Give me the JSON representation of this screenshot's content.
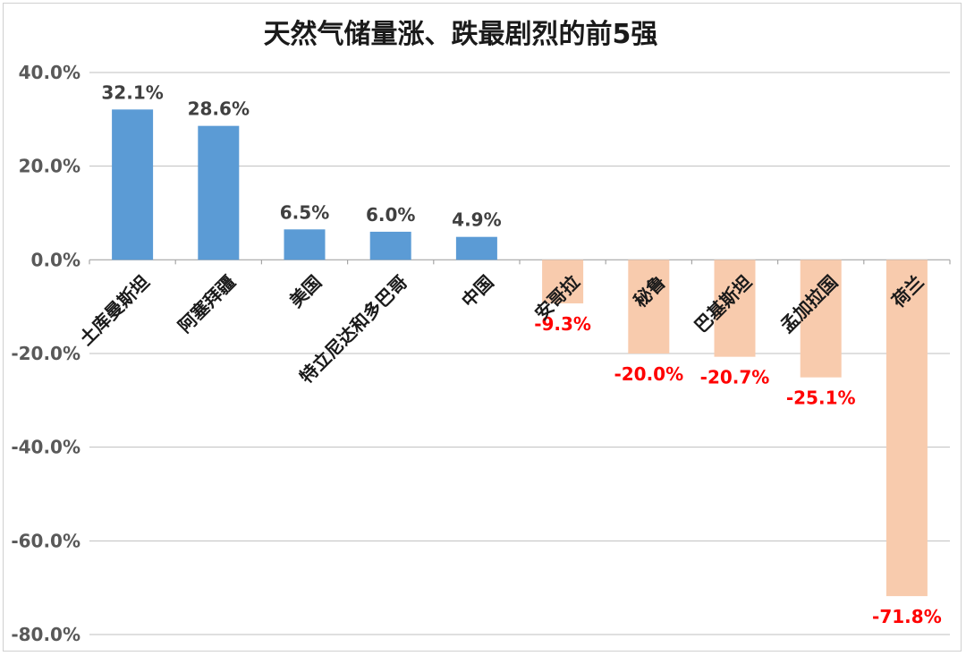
{
  "chart_data": {
    "type": "bar",
    "title": "天然气储量涨、跌最剧烈的前5强",
    "xlabel": "",
    "ylabel": "",
    "ylim": [
      -80,
      40
    ],
    "yticks": [
      40,
      20,
      0,
      -20,
      -40,
      -60,
      -80
    ],
    "ytick_labels": [
      "40.0%",
      "20.0%",
      "0.0%",
      "-20.0%",
      "-40.0%",
      "-60.0%",
      "-80.0%"
    ],
    "grid": true,
    "categories": [
      "土库曼斯坦",
      "阿塞拜疆",
      "美国",
      "特立尼达和多巴哥",
      "中国",
      "安哥拉",
      "秘鲁",
      "巴基斯坦",
      "孟加拉国",
      "荷兰"
    ],
    "values": [
      32.1,
      28.6,
      6.5,
      6.0,
      4.9,
      -9.3,
      -20.0,
      -20.7,
      -25.1,
      -71.8
    ],
    "data_labels": [
      "32.1%",
      "28.6%",
      "6.5%",
      "6.0%",
      "4.9%",
      "-9.3%",
      "-20.0%",
      "-20.7%",
      "-25.1%",
      "-71.8%"
    ],
    "colors": {
      "positive_bar": "#5b9bd5",
      "negative_bar": "#f8cbad",
      "positive_label": "#404040",
      "negative_label": "#ff0000"
    }
  }
}
